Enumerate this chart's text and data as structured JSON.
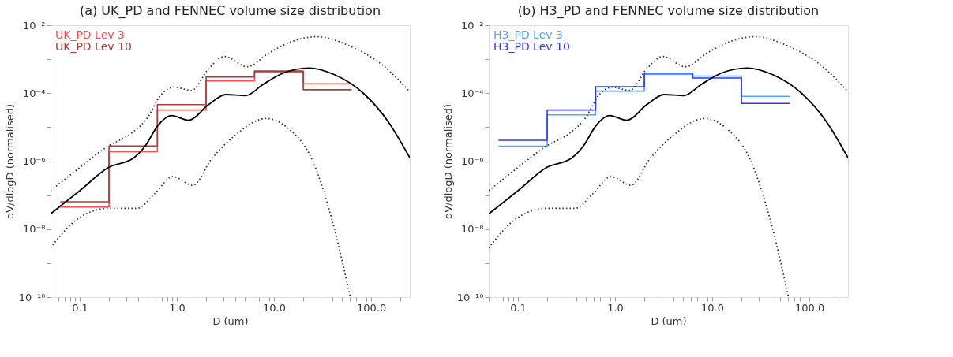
{
  "chart_data": [
    {
      "type": "line",
      "title": "(a) UK_PD and FENNEC volume size distribution",
      "xlabel": "D (um)",
      "ylabel": "dV/dlogD (normalised)",
      "log": "xy",
      "grid": false,
      "legend": "top left",
      "xlim": [
        0.05,
        250
      ],
      "ylim": [
        1e-10,
        0.01
      ],
      "xticks": [
        {
          "value": 0.05,
          "label": null
        },
        {
          "value": 0.06,
          "label": null
        },
        {
          "value": 0.07,
          "label": null
        },
        {
          "value": 0.08,
          "label": null
        },
        {
          "value": 0.09,
          "label": null
        },
        {
          "value": 0.1,
          "label": "0.1"
        },
        {
          "value": 0.2,
          "label": null
        },
        {
          "value": 0.3,
          "label": null
        },
        {
          "value": 0.4,
          "label": null
        },
        {
          "value": 0.5,
          "label": null
        },
        {
          "value": 0.6,
          "label": null
        },
        {
          "value": 0.7,
          "label": null
        },
        {
          "value": 0.8,
          "label": null
        },
        {
          "value": 0.9,
          "label": null
        },
        {
          "value": 1,
          "label": "1.0"
        },
        {
          "value": 2,
          "label": null
        },
        {
          "value": 3,
          "label": null
        },
        {
          "value": 4,
          "label": null
        },
        {
          "value": 5,
          "label": null
        },
        {
          "value": 6,
          "label": null
        },
        {
          "value": 7,
          "label": null
        },
        {
          "value": 8,
          "label": null
        },
        {
          "value": 9,
          "label": null
        },
        {
          "value": 10,
          "label": "10.0"
        },
        {
          "value": 20,
          "label": null
        },
        {
          "value": 30,
          "label": null
        },
        {
          "value": 40,
          "label": null
        },
        {
          "value": 50,
          "label": null
        },
        {
          "value": 60,
          "label": null
        },
        {
          "value": 70,
          "label": null
        },
        {
          "value": 80,
          "label": null
        },
        {
          "value": 90,
          "label": null
        },
        {
          "value": 100,
          "label": "100.0"
        },
        {
          "value": 200,
          "label": null
        }
      ],
      "yticks": [
        {
          "value": 1e-10,
          "label": "10⁻¹⁰"
        },
        {
          "value": 1e-09,
          "label": null
        },
        {
          "value": 1e-08,
          "label": "10⁻⁸"
        },
        {
          "value": 1e-07,
          "label": null
        },
        {
          "value": 1e-06,
          "label": "10⁻⁶"
        },
        {
          "value": 1e-05,
          "label": null
        },
        {
          "value": 0.0001,
          "label": "10⁻⁴"
        },
        {
          "value": 0.001,
          "label": null
        },
        {
          "value": 0.01,
          "label": "10⁻²"
        }
      ],
      "series": [
        {
          "name": "UK_PD Lev 3",
          "type": "step",
          "color": "#ff4d4d",
          "x": [
            0.063,
            0.2,
            0.63,
            2,
            6.3,
            20,
            63
          ],
          "values": [
            4.5e-08,
            1.9e-06,
            3.2e-05,
            0.00023,
            0.00042,
            0.00019,
            0.00019
          ]
        },
        {
          "name": "UK_PD Lev 10",
          "type": "step",
          "color": "#a83c3c",
          "x": [
            0.063,
            0.2,
            0.63,
            2,
            6.3,
            20,
            63
          ],
          "values": [
            6.4e-08,
            2.8e-06,
            4.6e-05,
            0.0003,
            0.00045,
            0.000126,
            0.000126
          ]
        },
        {
          "type": "line",
          "color": "#000000",
          "line_style": "solid",
          "x": [
            0.05,
            0.1,
            0.197,
            0.36,
            0.48,
            0.63,
            0.88,
            1.32,
            2.12,
            3.19,
            5.13,
            7.7,
            12.4,
            22.9,
            42,
            83,
            150,
            250
          ],
          "values": [
            2.8e-08,
            1.35e-07,
            6.5e-07,
            1.26e-06,
            3e-06,
            1.07e-05,
            2.2e-05,
            1.6e-05,
            4.6e-05,
            9.1e-05,
            8.5e-05,
            0.00018,
            0.00039,
            0.00055,
            0.00035,
            0.0001,
            1.45e-05,
            1.26e-06
          ]
        },
        {
          "type": "line",
          "color": "#333333",
          "line_style": "dotted",
          "x": [
            0.05,
            0.1,
            0.197,
            0.34,
            0.51,
            0.67,
            0.94,
            1.41,
            2.12,
            3.09,
            5.3,
            8.8,
            15.2,
            28,
            59,
            134,
            250
          ],
          "values": [
            1.35e-07,
            6.5e-07,
            2.8e-06,
            6.6e-06,
            2.1e-05,
            8.3e-05,
            0.00015,
            0.00012,
            0.00052,
            0.0012,
            0.0006,
            0.0015,
            0.0033,
            0.0046,
            0.0025,
            0.00064,
            0.00011
          ]
        },
        {
          "type": "line",
          "color": "#333333",
          "line_style": "dotted",
          "x": [
            0.05,
            0.094,
            0.197,
            0.39,
            0.59,
            0.91,
            1.46,
            2.27,
            3.9,
            8.3,
            14.2,
            24.5,
            39.4,
            61
          ],
          "values": [
            2.8e-09,
            1.95e-08,
            4.1e-08,
            4.1e-08,
            1.1e-07,
            3.5e-07,
            1.95e-07,
            1.15e-06,
            5.5e-06,
            1.8e-05,
            8.9e-06,
            1.15e-06,
            1.95e-08,
            1e-10
          ]
        }
      ]
    },
    {
      "type": "line",
      "title": "(b) H3_PD and FENNEC volume size distribution",
      "xlabel": "D (um)",
      "ylabel": "dV/dlogD (normalised)",
      "log": "xy",
      "grid": false,
      "legend": "top left",
      "xlim": [
        0.05,
        250
      ],
      "ylim": [
        1e-10,
        0.01
      ],
      "xticks": [
        {
          "value": 0.05,
          "label": null
        },
        {
          "value": 0.06,
          "label": null
        },
        {
          "value": 0.07,
          "label": null
        },
        {
          "value": 0.08,
          "label": null
        },
        {
          "value": 0.09,
          "label": null
        },
        {
          "value": 0.1,
          "label": "0.1"
        },
        {
          "value": 0.2,
          "label": null
        },
        {
          "value": 0.3,
          "label": null
        },
        {
          "value": 0.4,
          "label": null
        },
        {
          "value": 0.5,
          "label": null
        },
        {
          "value": 0.6,
          "label": null
        },
        {
          "value": 0.7,
          "label": null
        },
        {
          "value": 0.8,
          "label": null
        },
        {
          "value": 0.9,
          "label": null
        },
        {
          "value": 1,
          "label": "1.0"
        },
        {
          "value": 2,
          "label": null
        },
        {
          "value": 3,
          "label": null
        },
        {
          "value": 4,
          "label": null
        },
        {
          "value": 5,
          "label": null
        },
        {
          "value": 6,
          "label": null
        },
        {
          "value": 7,
          "label": null
        },
        {
          "value": 8,
          "label": null
        },
        {
          "value": 9,
          "label": null
        },
        {
          "value": 10,
          "label": "10.0"
        },
        {
          "value": 20,
          "label": null
        },
        {
          "value": 30,
          "label": null
        },
        {
          "value": 40,
          "label": null
        },
        {
          "value": 50,
          "label": null
        },
        {
          "value": 60,
          "label": null
        },
        {
          "value": 70,
          "label": null
        },
        {
          "value": 80,
          "label": null
        },
        {
          "value": 90,
          "label": null
        },
        {
          "value": 100,
          "label": "100.0"
        },
        {
          "value": 200,
          "label": null
        }
      ],
      "yticks": [
        {
          "value": 1e-10,
          "label": "10⁻¹⁰"
        },
        {
          "value": 1e-09,
          "label": null
        },
        {
          "value": 1e-08,
          "label": "10⁻⁸"
        },
        {
          "value": 1e-07,
          "label": null
        },
        {
          "value": 1e-06,
          "label": "10⁻⁶"
        },
        {
          "value": 1e-05,
          "label": null
        },
        {
          "value": 0.0001,
          "label": "10⁻⁴"
        },
        {
          "value": 0.001,
          "label": null
        },
        {
          "value": 0.01,
          "label": "10⁻²"
        }
      ],
      "series": [
        {
          "name": "H3_PD Lev 3",
          "type": "step",
          "color": "#4da6ff",
          "x": [
            0.063,
            0.2,
            0.63,
            2,
            6.3,
            20,
            63
          ],
          "values": [
            2.75e-06,
            2.3e-05,
            0.000115,
            0.00036,
            0.00032,
            8.1e-05,
            8.1e-05
          ]
        },
        {
          "name": "H3_PD Lev 10",
          "type": "step",
          "color": "#3333ff",
          "x": [
            0.063,
            0.2,
            0.63,
            2,
            6.3,
            20,
            63
          ],
          "values": [
            4.1e-06,
            3.2e-05,
            0.000155,
            0.00039,
            0.00028,
            5e-05,
            5e-05
          ]
        },
        {
          "type": "line",
          "color": "#000000",
          "line_style": "solid",
          "x": [
            0.05,
            0.1,
            0.197,
            0.36,
            0.48,
            0.63,
            0.88,
            1.32,
            2.12,
            3.19,
            5.13,
            7.7,
            12.4,
            22.9,
            42,
            83,
            150,
            250
          ],
          "values": [
            2.8e-08,
            1.35e-07,
            6.5e-07,
            1.26e-06,
            3e-06,
            1.07e-05,
            2.2e-05,
            1.6e-05,
            4.6e-05,
            9.1e-05,
            8.5e-05,
            0.00018,
            0.00039,
            0.00055,
            0.00035,
            0.0001,
            1.45e-05,
            1.26e-06
          ]
        },
        {
          "type": "line",
          "color": "#333333",
          "line_style": "dotted",
          "x": [
            0.05,
            0.1,
            0.197,
            0.34,
            0.51,
            0.67,
            0.94,
            1.41,
            2.12,
            3.09,
            5.3,
            8.8,
            15.2,
            28,
            59,
            134,
            250
          ],
          "values": [
            1.35e-07,
            6.5e-07,
            2.8e-06,
            6.6e-06,
            2.1e-05,
            8.3e-05,
            0.00015,
            0.00012,
            0.00052,
            0.0012,
            0.0006,
            0.0015,
            0.0033,
            0.0046,
            0.0025,
            0.00064,
            0.00011
          ]
        },
        {
          "type": "line",
          "color": "#333333",
          "line_style": "dotted",
          "x": [
            0.05,
            0.094,
            0.197,
            0.39,
            0.59,
            0.91,
            1.46,
            2.27,
            3.9,
            8.3,
            14.2,
            24.5,
            39.4,
            61
          ],
          "values": [
            2.8e-09,
            1.95e-08,
            4.1e-08,
            4.1e-08,
            1.1e-07,
            3.5e-07,
            1.95e-07,
            1.15e-06,
            5.5e-06,
            1.8e-05,
            8.9e-06,
            1.15e-06,
            1.95e-08,
            1e-10
          ]
        }
      ]
    }
  ]
}
